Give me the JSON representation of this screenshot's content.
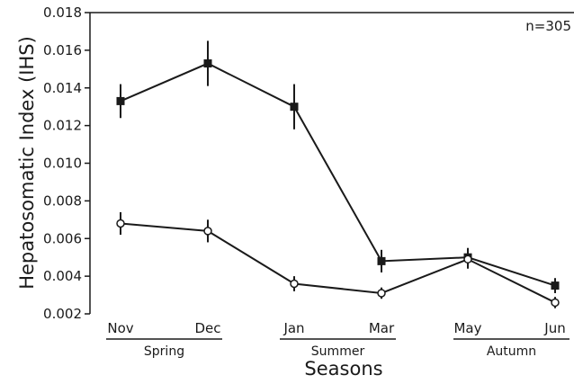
{
  "chart_data": {
    "type": "line",
    "ylabel": "Hepatosomatic Index (IHS)",
    "xlabel": "Seasons",
    "annotation": "n=305",
    "categories": [
      "Nov",
      "Dec",
      "Jan",
      "Mar",
      "May",
      "Jun"
    ],
    "season_groups": [
      {
        "label": "Spring",
        "categories": [
          "Nov",
          "Dec"
        ]
      },
      {
        "label": "Summer",
        "categories": [
          "Jan",
          "Mar"
        ]
      },
      {
        "label": "Autumn",
        "categories": [
          "May",
          "Jun"
        ]
      }
    ],
    "yticks": [
      "0.002",
      "0.004",
      "0.006",
      "0.008",
      "0.010",
      "0.012",
      "0.014",
      "0.016",
      "0.018"
    ],
    "ylim": [
      0.002,
      0.018
    ],
    "grid": false,
    "series": [
      {
        "marker": "filled-square",
        "color": "#1a1a1a",
        "values": [
          0.0133,
          0.0153,
          0.013,
          0.0048,
          0.005,
          0.0035
        ],
        "error": [
          0.0009,
          0.0012,
          0.0012,
          0.0006,
          0.0005,
          0.0004
        ]
      },
      {
        "marker": "open-circle",
        "color": "#1a1a1a",
        "values": [
          0.0068,
          0.0064,
          0.0036,
          0.0031,
          0.0049,
          0.0026
        ],
        "error": [
          0.0006,
          0.0006,
          0.0004,
          0.0003,
          0.0005,
          0.0003
        ]
      }
    ]
  }
}
